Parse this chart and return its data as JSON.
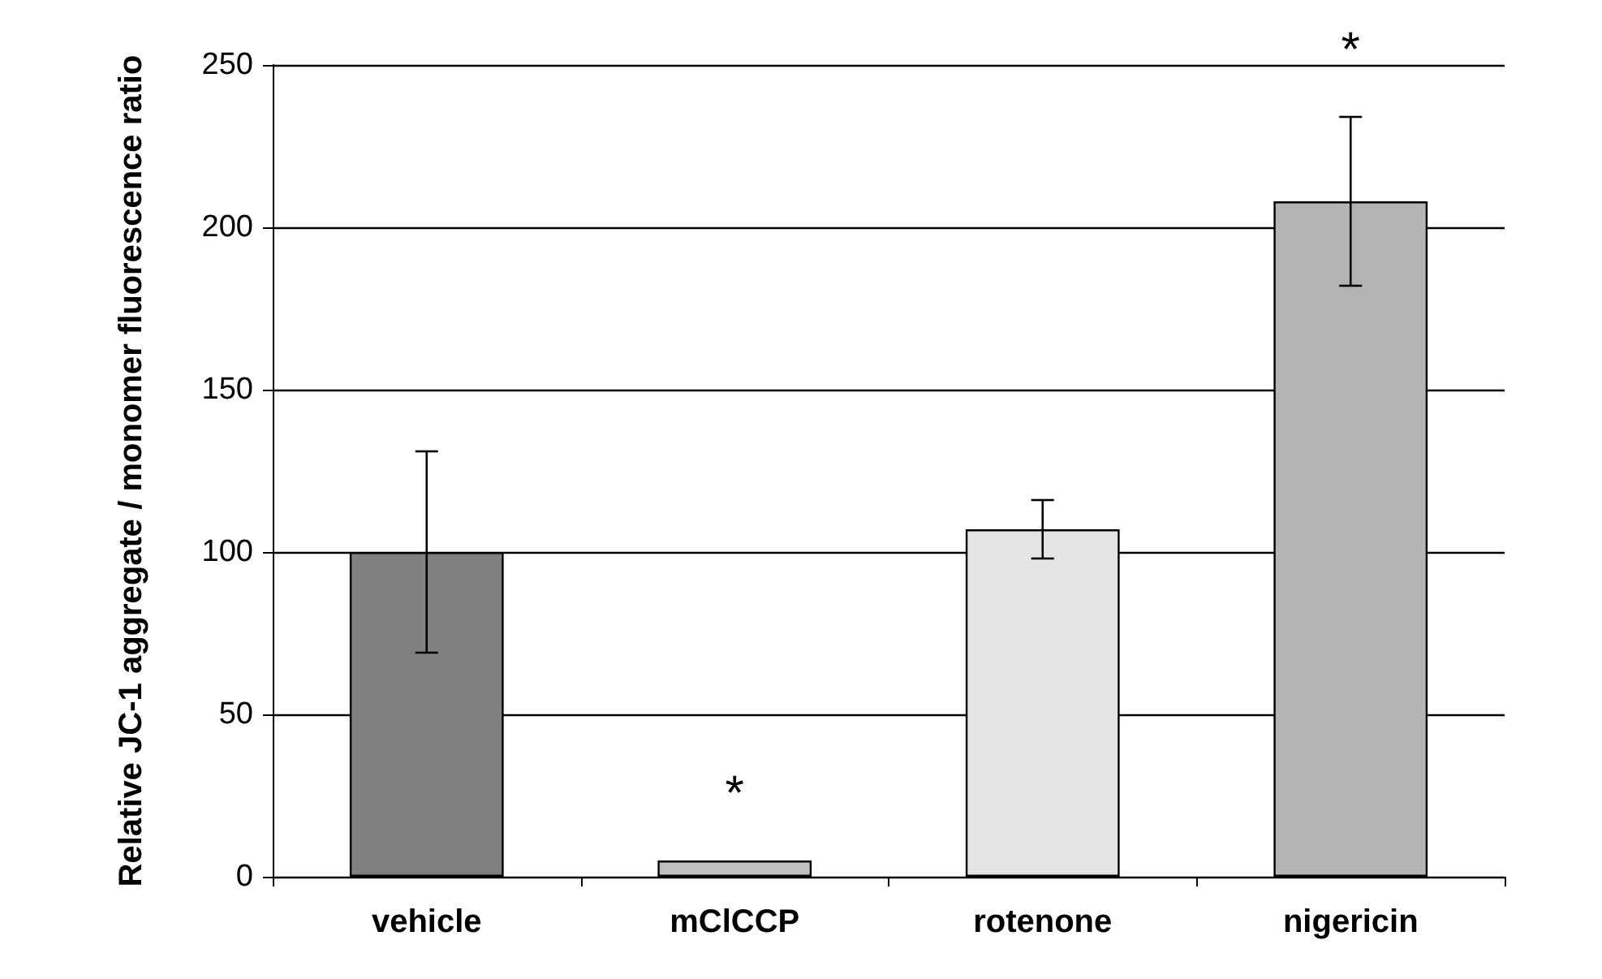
{
  "chart_data": {
    "type": "bar",
    "ylabel": "Relative JC-1 aggregate / monomer fluorescence ratio",
    "categories": [
      "vehicle",
      "mClCCP",
      "rotenone",
      "nigericin"
    ],
    "values": [
      100,
      5,
      107,
      208
    ],
    "errors": [
      31,
      null,
      9,
      26
    ],
    "colors": [
      "#808080",
      "#c0c0c0",
      "#e4e4e4",
      "#b4b4b4"
    ],
    "ylim": [
      0,
      250
    ],
    "yticks": [
      0,
      50,
      100,
      150,
      200,
      250
    ],
    "grid": "y",
    "annotations": [
      {
        "text": "*",
        "x": "mClCCP",
        "y": 5
      },
      {
        "text": "*",
        "x": "nigericin",
        "y": 234
      }
    ]
  }
}
